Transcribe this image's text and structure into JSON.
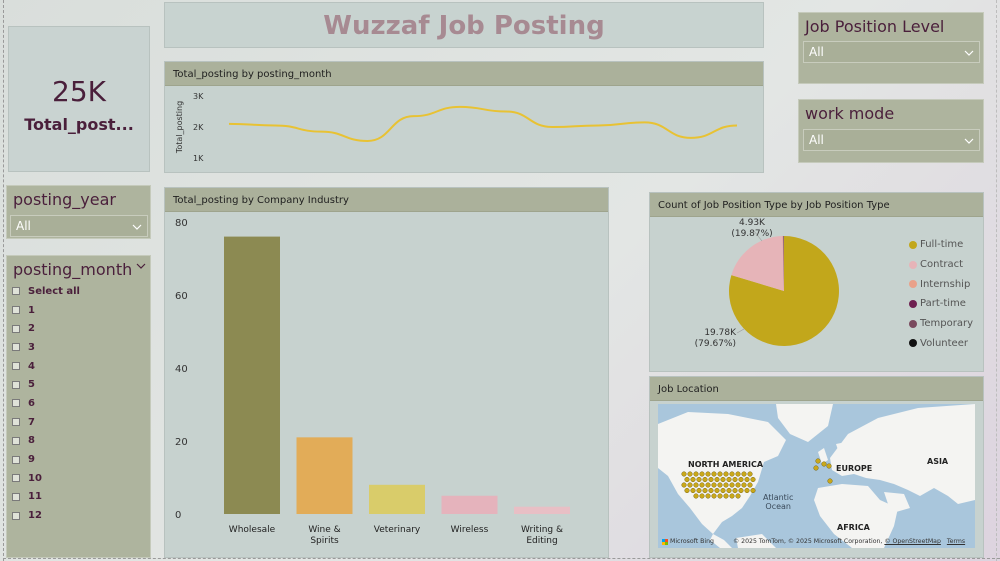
{
  "title": "Wuzzaf Job Posting",
  "kpi": {
    "value": "25K",
    "label": "Total_post..."
  },
  "slicers": {
    "job_level": {
      "title": "Job Position Level",
      "value": "All"
    },
    "work_mode": {
      "title": "work mode",
      "value": "All"
    },
    "year": {
      "title": "posting_year",
      "value": "All"
    },
    "month": {
      "title": "posting_month",
      "items": [
        "Select all",
        "1",
        "2",
        "3",
        "4",
        "5",
        "6",
        "7",
        "8",
        "9",
        "10",
        "11",
        "12"
      ]
    }
  },
  "line_chart": {
    "header": "Total_posting by posting_month",
    "chart_data": {
      "type": "line",
      "title": "Total_posting by posting_month",
      "ylabel": "Total_posting",
      "y_ticks": [
        "3K",
        "2K",
        "1K"
      ],
      "ylim": [
        1000,
        3000
      ],
      "values": [
        2100,
        2050,
        1850,
        1550,
        2350,
        2650,
        2500,
        2000,
        2050,
        2150,
        1650,
        2050
      ],
      "color": "#e8c233"
    }
  },
  "bar_chart": {
    "header": "Total_posting by Company Industry",
    "chart_data": {
      "type": "bar",
      "title": "Total_posting by Company Industry",
      "categories": [
        [
          "Wholesale"
        ],
        [
          "Wine &",
          "Spirits"
        ],
        [
          "Veterinary"
        ],
        [
          "Wireless"
        ],
        [
          "Writing &",
          "Editing"
        ]
      ],
      "values": [
        76,
        21,
        8,
        5,
        2
      ],
      "ylim": [
        0,
        80
      ],
      "y_ticks": [
        "80",
        "60",
        "40",
        "20",
        "0"
      ],
      "colors": [
        "#8c8a52",
        "#e2ac58",
        "#d9cc6a",
        "#e5b3bc",
        "#e8bfc5"
      ]
    }
  },
  "pie_chart": {
    "header": "Count of Job Position Type by Job Position Type",
    "chart_data": {
      "type": "pie",
      "title": "Count of Job Position Type by Job Position Type",
      "slices": [
        {
          "name": "Full-time",
          "value": 19780,
          "percent": 79.67,
          "label": [
            "19.78K",
            "(79.67%)"
          ],
          "color": "#c2a71b"
        },
        {
          "name": "Contract",
          "value": 4930,
          "percent": 19.87,
          "label": [
            "4.93K",
            "(19.87%)"
          ],
          "color": "#e6b4b8"
        },
        {
          "name": "Internship",
          "value": 60,
          "percent": 0.24,
          "color": "#e9a18a"
        },
        {
          "name": "Part-time",
          "value": 30,
          "percent": 0.12,
          "color": "#6e2050"
        },
        {
          "name": "Temporary",
          "value": 20,
          "percent": 0.08,
          "color": "#7a4a5e"
        },
        {
          "name": "Volunteer",
          "value": 5,
          "percent": 0.02,
          "color": "#111111"
        }
      ]
    }
  },
  "map": {
    "header": "Job Location",
    "labels": {
      "north_america": "NORTH AMERICA",
      "europe": "EUROPE",
      "asia": "ASIA",
      "africa": "AFRICA",
      "atlantic_1": "Atlantic",
      "atlantic_2": "Ocean"
    },
    "bing": "Microsoft Bing",
    "copyright_prefix": "© 2025 TomTom, © 2025 Microsoft Corporation,",
    "osm": "© OpenStreetMap",
    "terms": "Terms",
    "marker_color": "#c9a81a"
  }
}
